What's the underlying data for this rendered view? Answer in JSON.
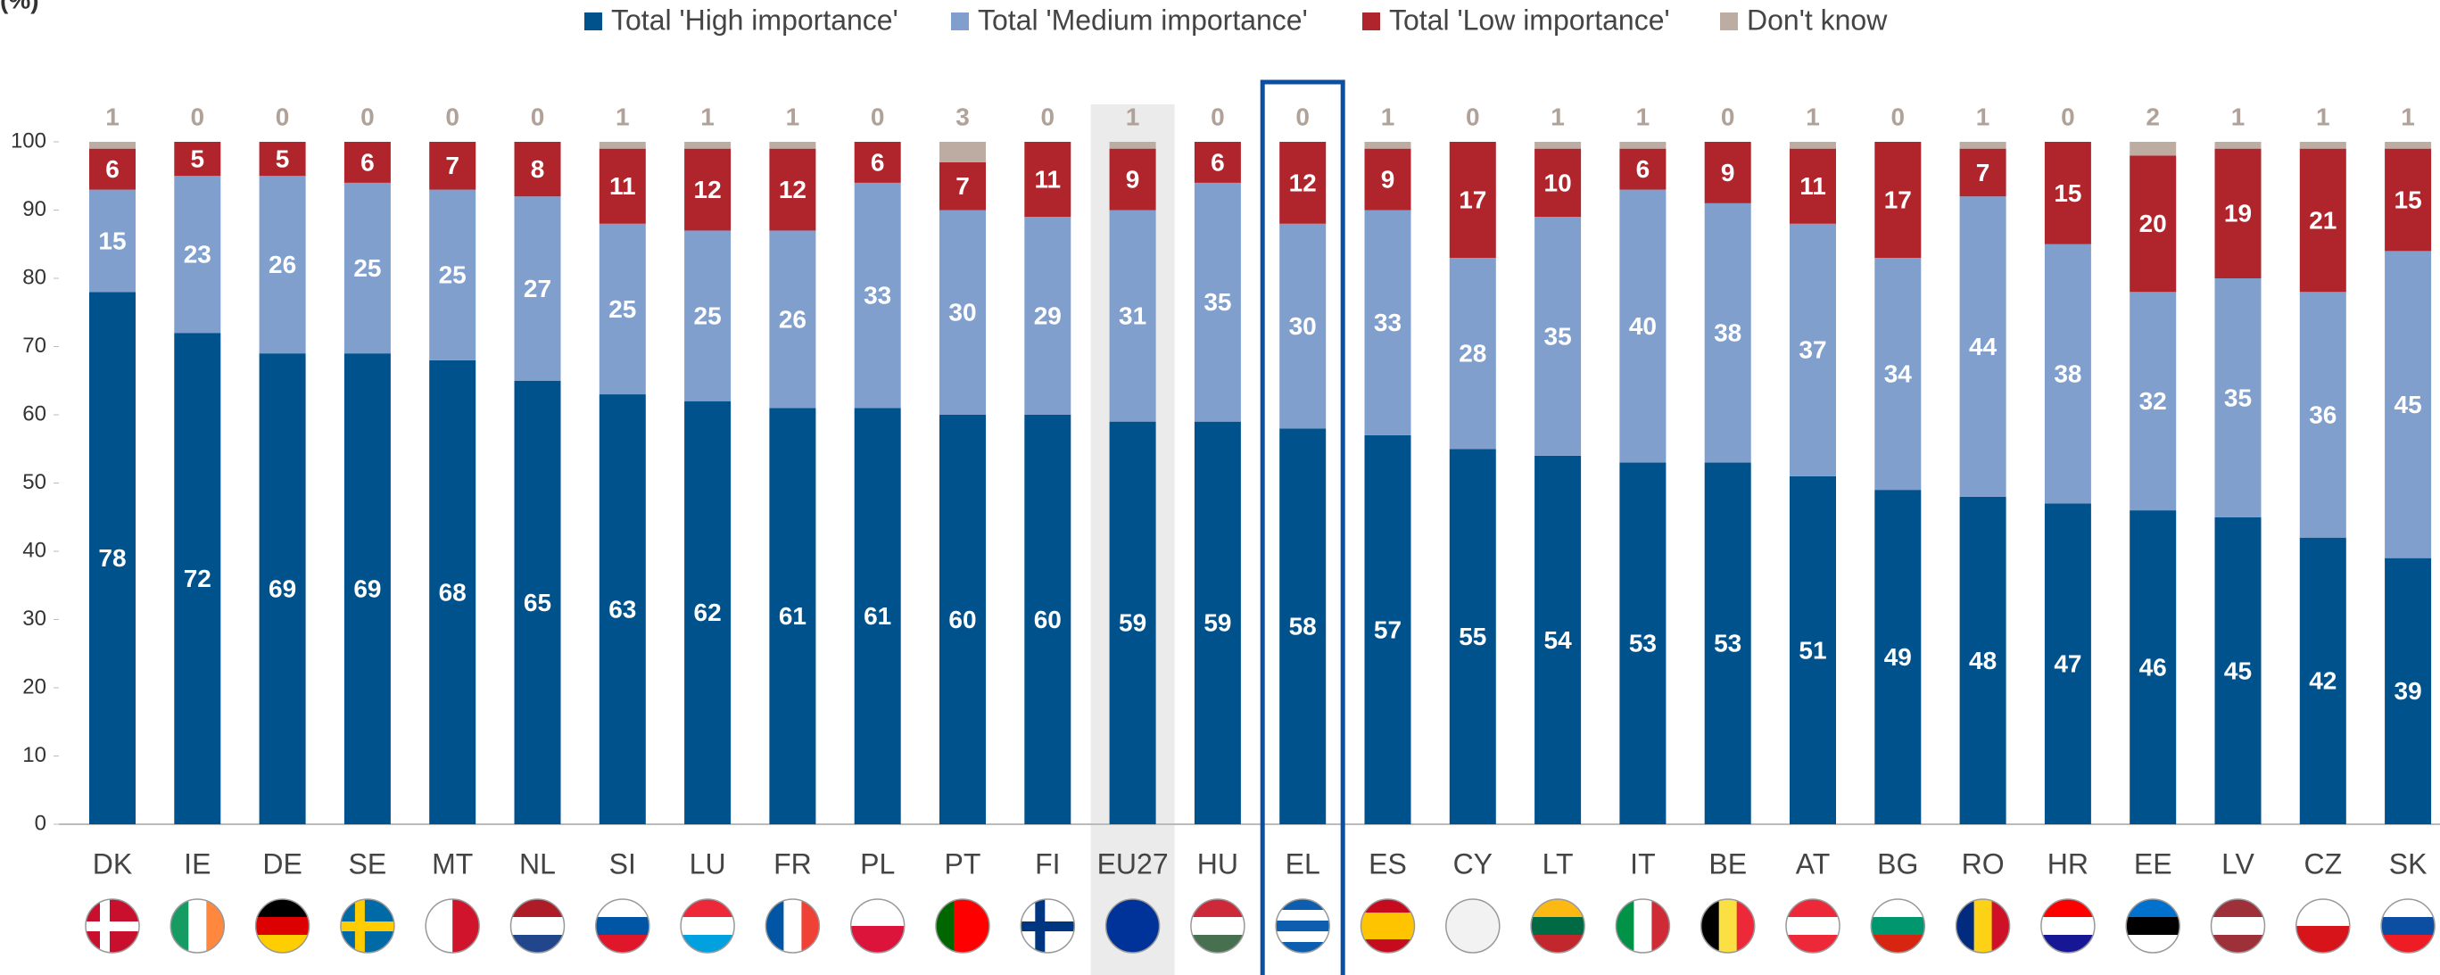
{
  "chart_data": {
    "type": "stacked_bar",
    "y_unit_label": "(%)",
    "categories": [
      "DK",
      "IE",
      "DE",
      "SE",
      "MT",
      "NL",
      "SI",
      "LU",
      "FR",
      "PL",
      "PT",
      "FI",
      "EU27",
      "HU",
      "EL",
      "ES",
      "CY",
      "LT",
      "IT",
      "BE",
      "AT",
      "BG",
      "RO",
      "HR",
      "EE",
      "LV",
      "CZ",
      "SK"
    ],
    "series": [
      {
        "name": "Total 'High importance'",
        "color": "#00528c",
        "values": [
          78,
          72,
          69,
          69,
          68,
          65,
          63,
          62,
          61,
          61,
          60,
          60,
          59,
          59,
          58,
          57,
          55,
          54,
          53,
          53,
          51,
          49,
          48,
          47,
          46,
          45,
          42,
          39
        ]
      },
      {
        "name": "Total 'Medium importance'",
        "color": "#809fcd",
        "values": [
          15,
          23,
          26,
          25,
          25,
          27,
          25,
          25,
          26,
          33,
          30,
          29,
          31,
          35,
          30,
          33,
          28,
          35,
          40,
          38,
          37,
          34,
          44,
          38,
          32,
          35,
          36,
          45
        ]
      },
      {
        "name": "Total 'Low importance'",
        "color": "#b0242b",
        "values": [
          6,
          5,
          5,
          6,
          7,
          8,
          11,
          12,
          12,
          6,
          7,
          11,
          9,
          6,
          12,
          9,
          17,
          10,
          6,
          9,
          11,
          17,
          7,
          15,
          20,
          19,
          21,
          15
        ]
      },
      {
        "name": "Don't know",
        "color": "#bcaca2",
        "values": [
          1,
          0,
          0,
          0,
          0,
          0,
          1,
          1,
          1,
          0,
          3,
          0,
          1,
          0,
          0,
          1,
          0,
          1,
          1,
          0,
          1,
          0,
          1,
          0,
          2,
          1,
          1,
          1
        ]
      }
    ],
    "ylim": [
      0,
      100
    ],
    "yticks": [
      0,
      10,
      20,
      30,
      40,
      50,
      60,
      70,
      80,
      90,
      100
    ],
    "shaded_category_index": 12,
    "boxed_category_index": 14,
    "legend": "top"
  }
}
